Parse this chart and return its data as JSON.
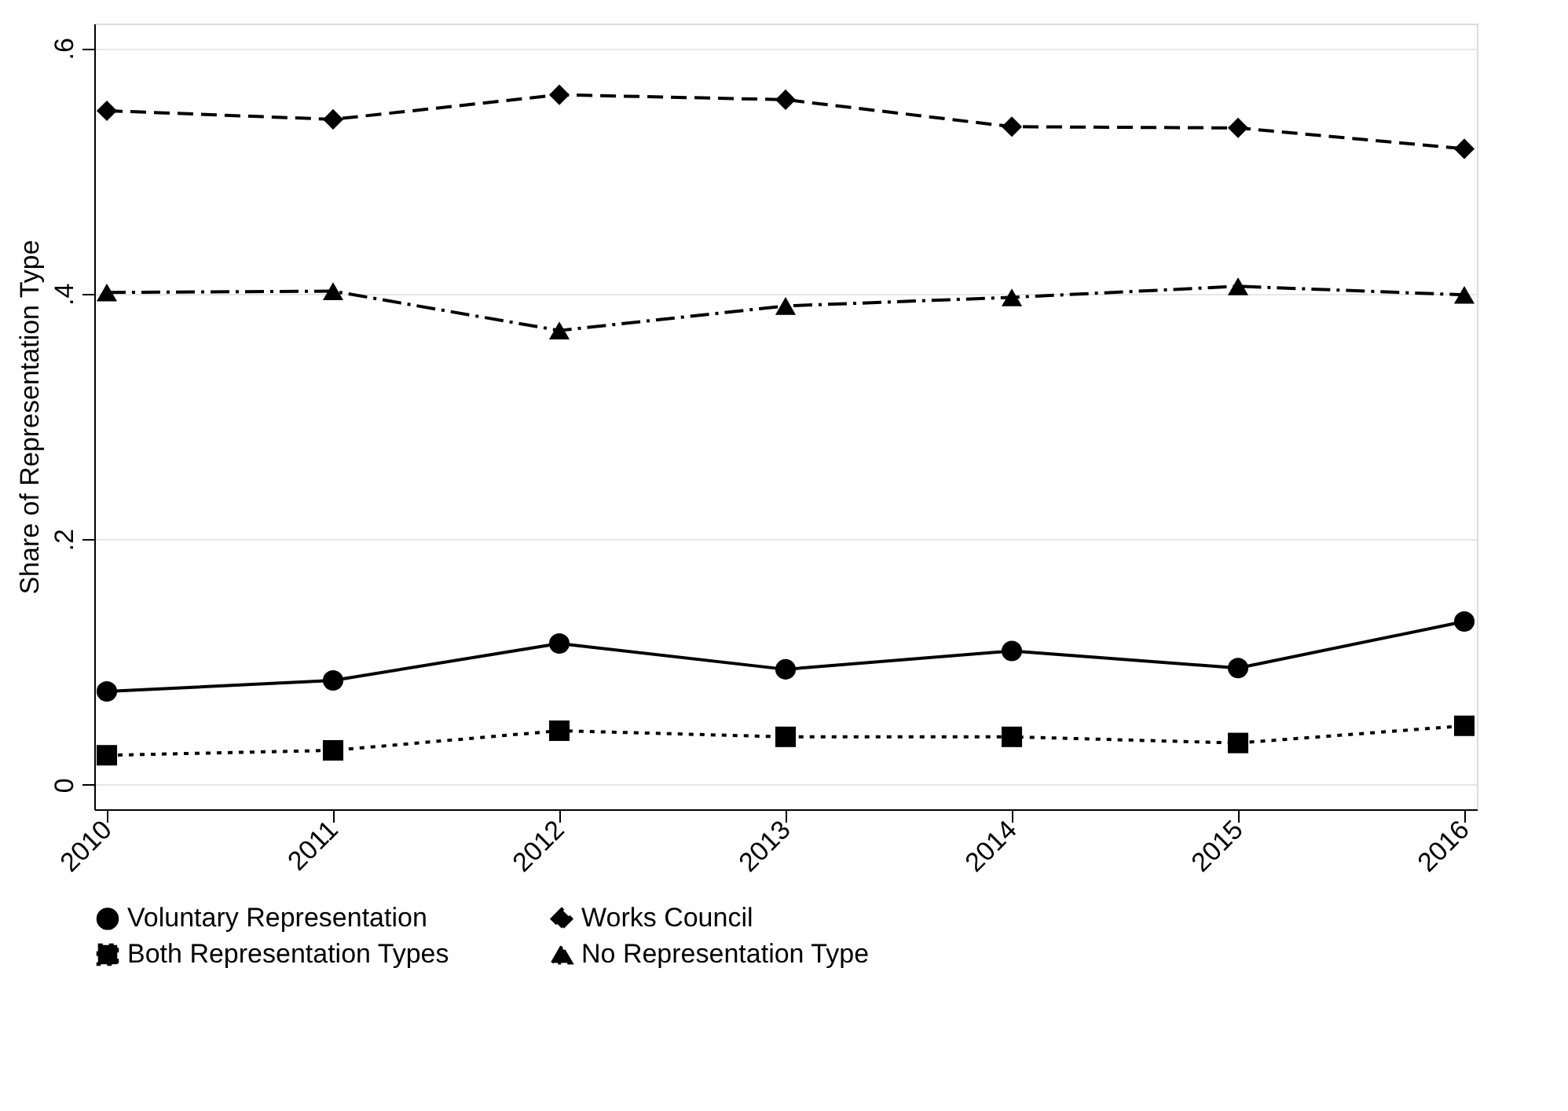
{
  "chart_data": {
    "type": "line",
    "ylabel": "Share of Representation Type",
    "categories": [
      "2010",
      "2011",
      "2012",
      "2013",
      "2014",
      "2015",
      "2016"
    ],
    "series": [
      {
        "name": "Voluntary Representation",
        "color": "#000000",
        "marker": "circle",
        "line_style": "solid",
        "values": [
          0.076,
          0.085,
          0.115,
          0.094,
          0.109,
          0.095,
          0.133
        ]
      },
      {
        "name": "Works Council",
        "color": "#000000",
        "marker": "diamond",
        "line_style": "dashed",
        "values": [
          0.549,
          0.542,
          0.562,
          0.558,
          0.536,
          0.535,
          0.518
        ]
      },
      {
        "name": "Both Representation Types",
        "color": "#000000",
        "marker": "square",
        "line_style": "dotted",
        "values": [
          0.024,
          0.028,
          0.044,
          0.039,
          0.039,
          0.034,
          0.048
        ]
      },
      {
        "name": "No Representation Type",
        "color": "#000000",
        "marker": "triangle",
        "line_style": "dashdot",
        "values": [
          0.401,
          0.402,
          0.37,
          0.39,
          0.397,
          0.406,
          0.399
        ]
      }
    ],
    "ylim": [
      -0.02,
      0.62
    ],
    "yticks": [
      {
        "value": 0,
        "label": "0"
      },
      {
        "value": 0.2,
        "label": ".2"
      },
      {
        "value": 0.4,
        "label": ".4"
      },
      {
        "value": 0.6,
        "label": ".6"
      }
    ],
    "grid": "y",
    "legend": "bottom"
  }
}
